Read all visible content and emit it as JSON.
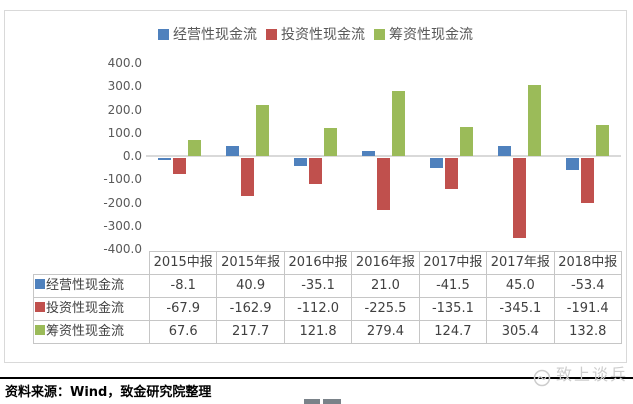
{
  "chart_data": {
    "type": "bar",
    "title": "",
    "categories": [
      "2015中报",
      "2015年报",
      "2016中报",
      "2016年报",
      "2017中报",
      "2017年报",
      "2018中报"
    ],
    "series": [
      {
        "name": "经营性现金流",
        "color": "#4F81BD",
        "values": [
          -8.1,
          40.9,
          -35.1,
          21.0,
          -41.5,
          45.0,
          -53.4
        ]
      },
      {
        "name": "投资性现金流",
        "color": "#C0504D",
        "values": [
          -67.9,
          -162.9,
          -112.0,
          -225.5,
          -135.1,
          -345.1,
          -191.4
        ]
      },
      {
        "name": "筹资性现金流",
        "color": "#9BBB59",
        "values": [
          67.6,
          217.7,
          121.8,
          279.4,
          124.7,
          305.4,
          132.8
        ]
      }
    ],
    "ylim": [
      -400,
      400
    ],
    "ytick_step": 100,
    "y_ticks": [
      "400.0",
      "300.0",
      "200.0",
      "100.0",
      "0.0",
      "-100.0",
      "-200.0",
      "-300.0",
      "-400.0"
    ],
    "legend_position": "top",
    "grid": false,
    "data_table_shown": true,
    "axis_line_color": "#D9D9D9"
  },
  "footer": {
    "source_text": "资料来源：Wind，致金研究院整理"
  },
  "watermark": {
    "text": "致上谈兵"
  }
}
